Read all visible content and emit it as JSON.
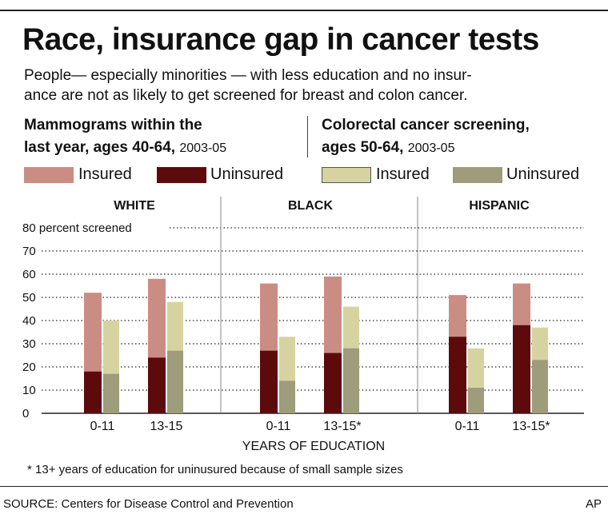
{
  "title": "Race, insurance gap in cancer tests",
  "subtitle_line1": "People— especially minorities — with less education and no insur-",
  "subtitle_line2": "ance are not as likely to get screened for breast and colon cancer.",
  "mammogram_heading": {
    "line1": "Mammograms within the",
    "line2": "last year, ages 40-64,",
    "years": "2003-05"
  },
  "colorectal_heading": {
    "line1": "Colorectal cancer screening,",
    "line2": "ages 50-64,",
    "years": "2003-05"
  },
  "legend": {
    "insured": "Insured",
    "uninsured": "Uninsured"
  },
  "footnote": "* 13+ years of education for uninusured because of small sample sizes",
  "source": "SOURCE: Centers for Disease Control and Prevention",
  "credit": "AP",
  "colors": {
    "mammogram_insured": "#c98d84",
    "mammogram_uninsured": "#5c0a0c",
    "colorectal_insured": "#d7d3a0",
    "colorectal_uninsured": "#9e9c7a"
  },
  "chart_data": {
    "type": "bar",
    "ylabel": "percent screened",
    "xlabel": "YEARS OF EDUCATION",
    "ylim": [
      0,
      80
    ],
    "yticks": [
      0,
      10,
      20,
      30,
      40,
      50,
      60,
      70,
      80
    ],
    "yticks_labels": [
      "0",
      "10",
      "20",
      "30",
      "40",
      "50",
      "60",
      "70",
      "80 percent screened"
    ],
    "grid": true,
    "groups": [
      {
        "name": "WHITE",
        "categories": [
          "0-11",
          "13-15"
        ],
        "mammogram_insured": [
          52,
          58
        ],
        "mammogram_uninsured": [
          18,
          24
        ],
        "colorectal_insured": [
          40,
          48
        ],
        "colorectal_uninsured": [
          17,
          27
        ]
      },
      {
        "name": "BLACK",
        "categories": [
          "0-11",
          "13-15*"
        ],
        "mammogram_insured": [
          56,
          59
        ],
        "mammogram_uninsured": [
          27,
          26
        ],
        "colorectal_insured": [
          33,
          46
        ],
        "colorectal_uninsured": [
          14,
          28
        ]
      },
      {
        "name": "HISPANIC",
        "categories": [
          "0-11",
          "13-15*"
        ],
        "mammogram_insured": [
          51,
          56
        ],
        "mammogram_uninsured": [
          33,
          38
        ],
        "colorectal_insured": [
          28,
          37
        ],
        "colorectal_uninsured": [
          11,
          23
        ]
      }
    ]
  }
}
